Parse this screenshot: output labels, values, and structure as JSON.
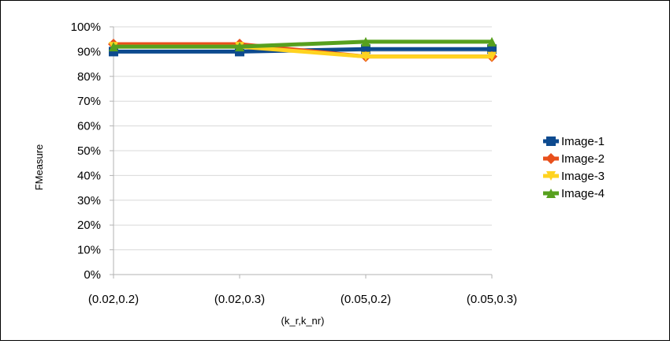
{
  "chart_data": {
    "type": "line",
    "categories": [
      "(0.02,0.2)",
      "(0.02,0.3)",
      "(0.05,0.2)",
      "(0.05,0.3)"
    ],
    "ylabel": "FMeasure",
    "xlabel": "(k_r,k_nr)",
    "ylim": [
      0,
      100
    ],
    "y_ticks": [
      "0%",
      "10%",
      "20%",
      "30%",
      "40%",
      "50%",
      "60%",
      "70%",
      "80%",
      "90%",
      "100%"
    ],
    "grid": true,
    "legend_position": "right",
    "series": [
      {
        "name": "Image-1",
        "color": "#0d4a8f",
        "marker": "square",
        "values": [
          90,
          90,
          91,
          91
        ]
      },
      {
        "name": "Image-2",
        "color": "#e8501c",
        "marker": "diamond",
        "values": [
          93,
          93,
          88,
          88
        ]
      },
      {
        "name": "Image-3",
        "color": "#ffd320",
        "marker": "triangle-down",
        "values": [
          92,
          92,
          88,
          88
        ]
      },
      {
        "name": "Image-4",
        "color": "#57a01e",
        "marker": "triangle-up",
        "values": [
          92,
          92,
          94,
          94
        ]
      }
    ]
  }
}
